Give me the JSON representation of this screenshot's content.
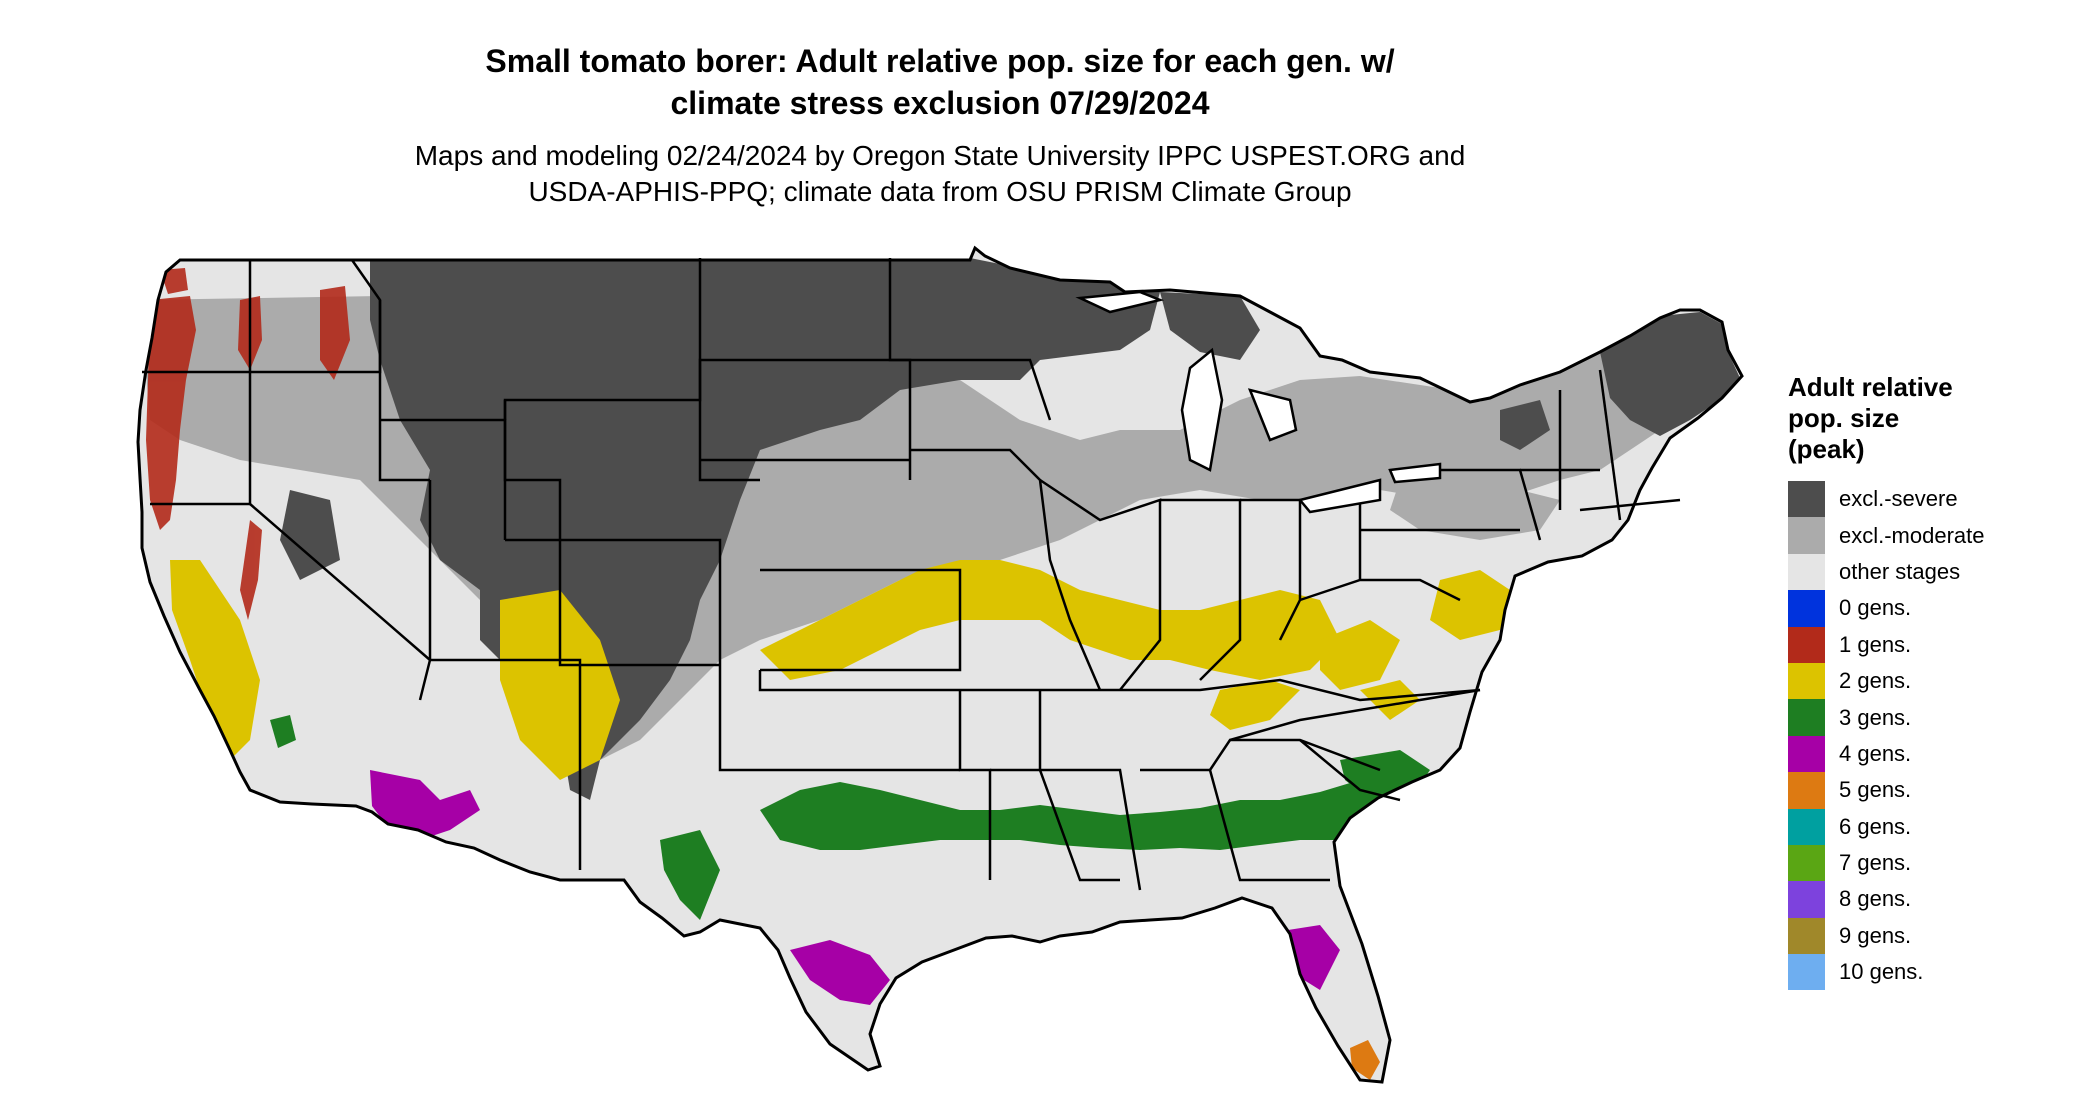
{
  "title_line1": "Small tomato borer: Adult relative pop. size for each gen. w/",
  "title_line2": "climate stress exclusion 07/29/2024",
  "subtitle_line1": "Maps and modeling 02/24/2024 by Oregon State University IPPC USPEST.ORG and",
  "subtitle_line2": "USDA-APHIS-PPQ; climate data from OSU PRISM Climate Group",
  "legend": {
    "title_line1": "Adult relative",
    "title_line2": "pop. size",
    "title_line3": "(peak)",
    "items": [
      {
        "label": "excl.-severe",
        "color": "#4d4d4d"
      },
      {
        "label": "excl.-moderate",
        "color": "#ababab"
      },
      {
        "label": "other stages",
        "color": "#e5e5e5"
      },
      {
        "label": "0 gens.",
        "color": "#0033dd"
      },
      {
        "label": "1 gens.",
        "color": "#b22a1a"
      },
      {
        "label": "2 gens.",
        "color": "#dcc300"
      },
      {
        "label": "3 gens.",
        "color": "#1e7e22"
      },
      {
        "label": "4 gens.",
        "color": "#a600a6"
      },
      {
        "label": "5 gens.",
        "color": "#dd7a12"
      },
      {
        "label": "6 gens.",
        "color": "#00a0a0"
      },
      {
        "label": "7 gens.",
        "color": "#5aa614"
      },
      {
        "label": "8 gens.",
        "color": "#7d42dd"
      },
      {
        "label": "9 gens.",
        "color": "#a0882a"
      },
      {
        "label": "10 gens.",
        "color": "#6eaef0"
      }
    ]
  }
}
